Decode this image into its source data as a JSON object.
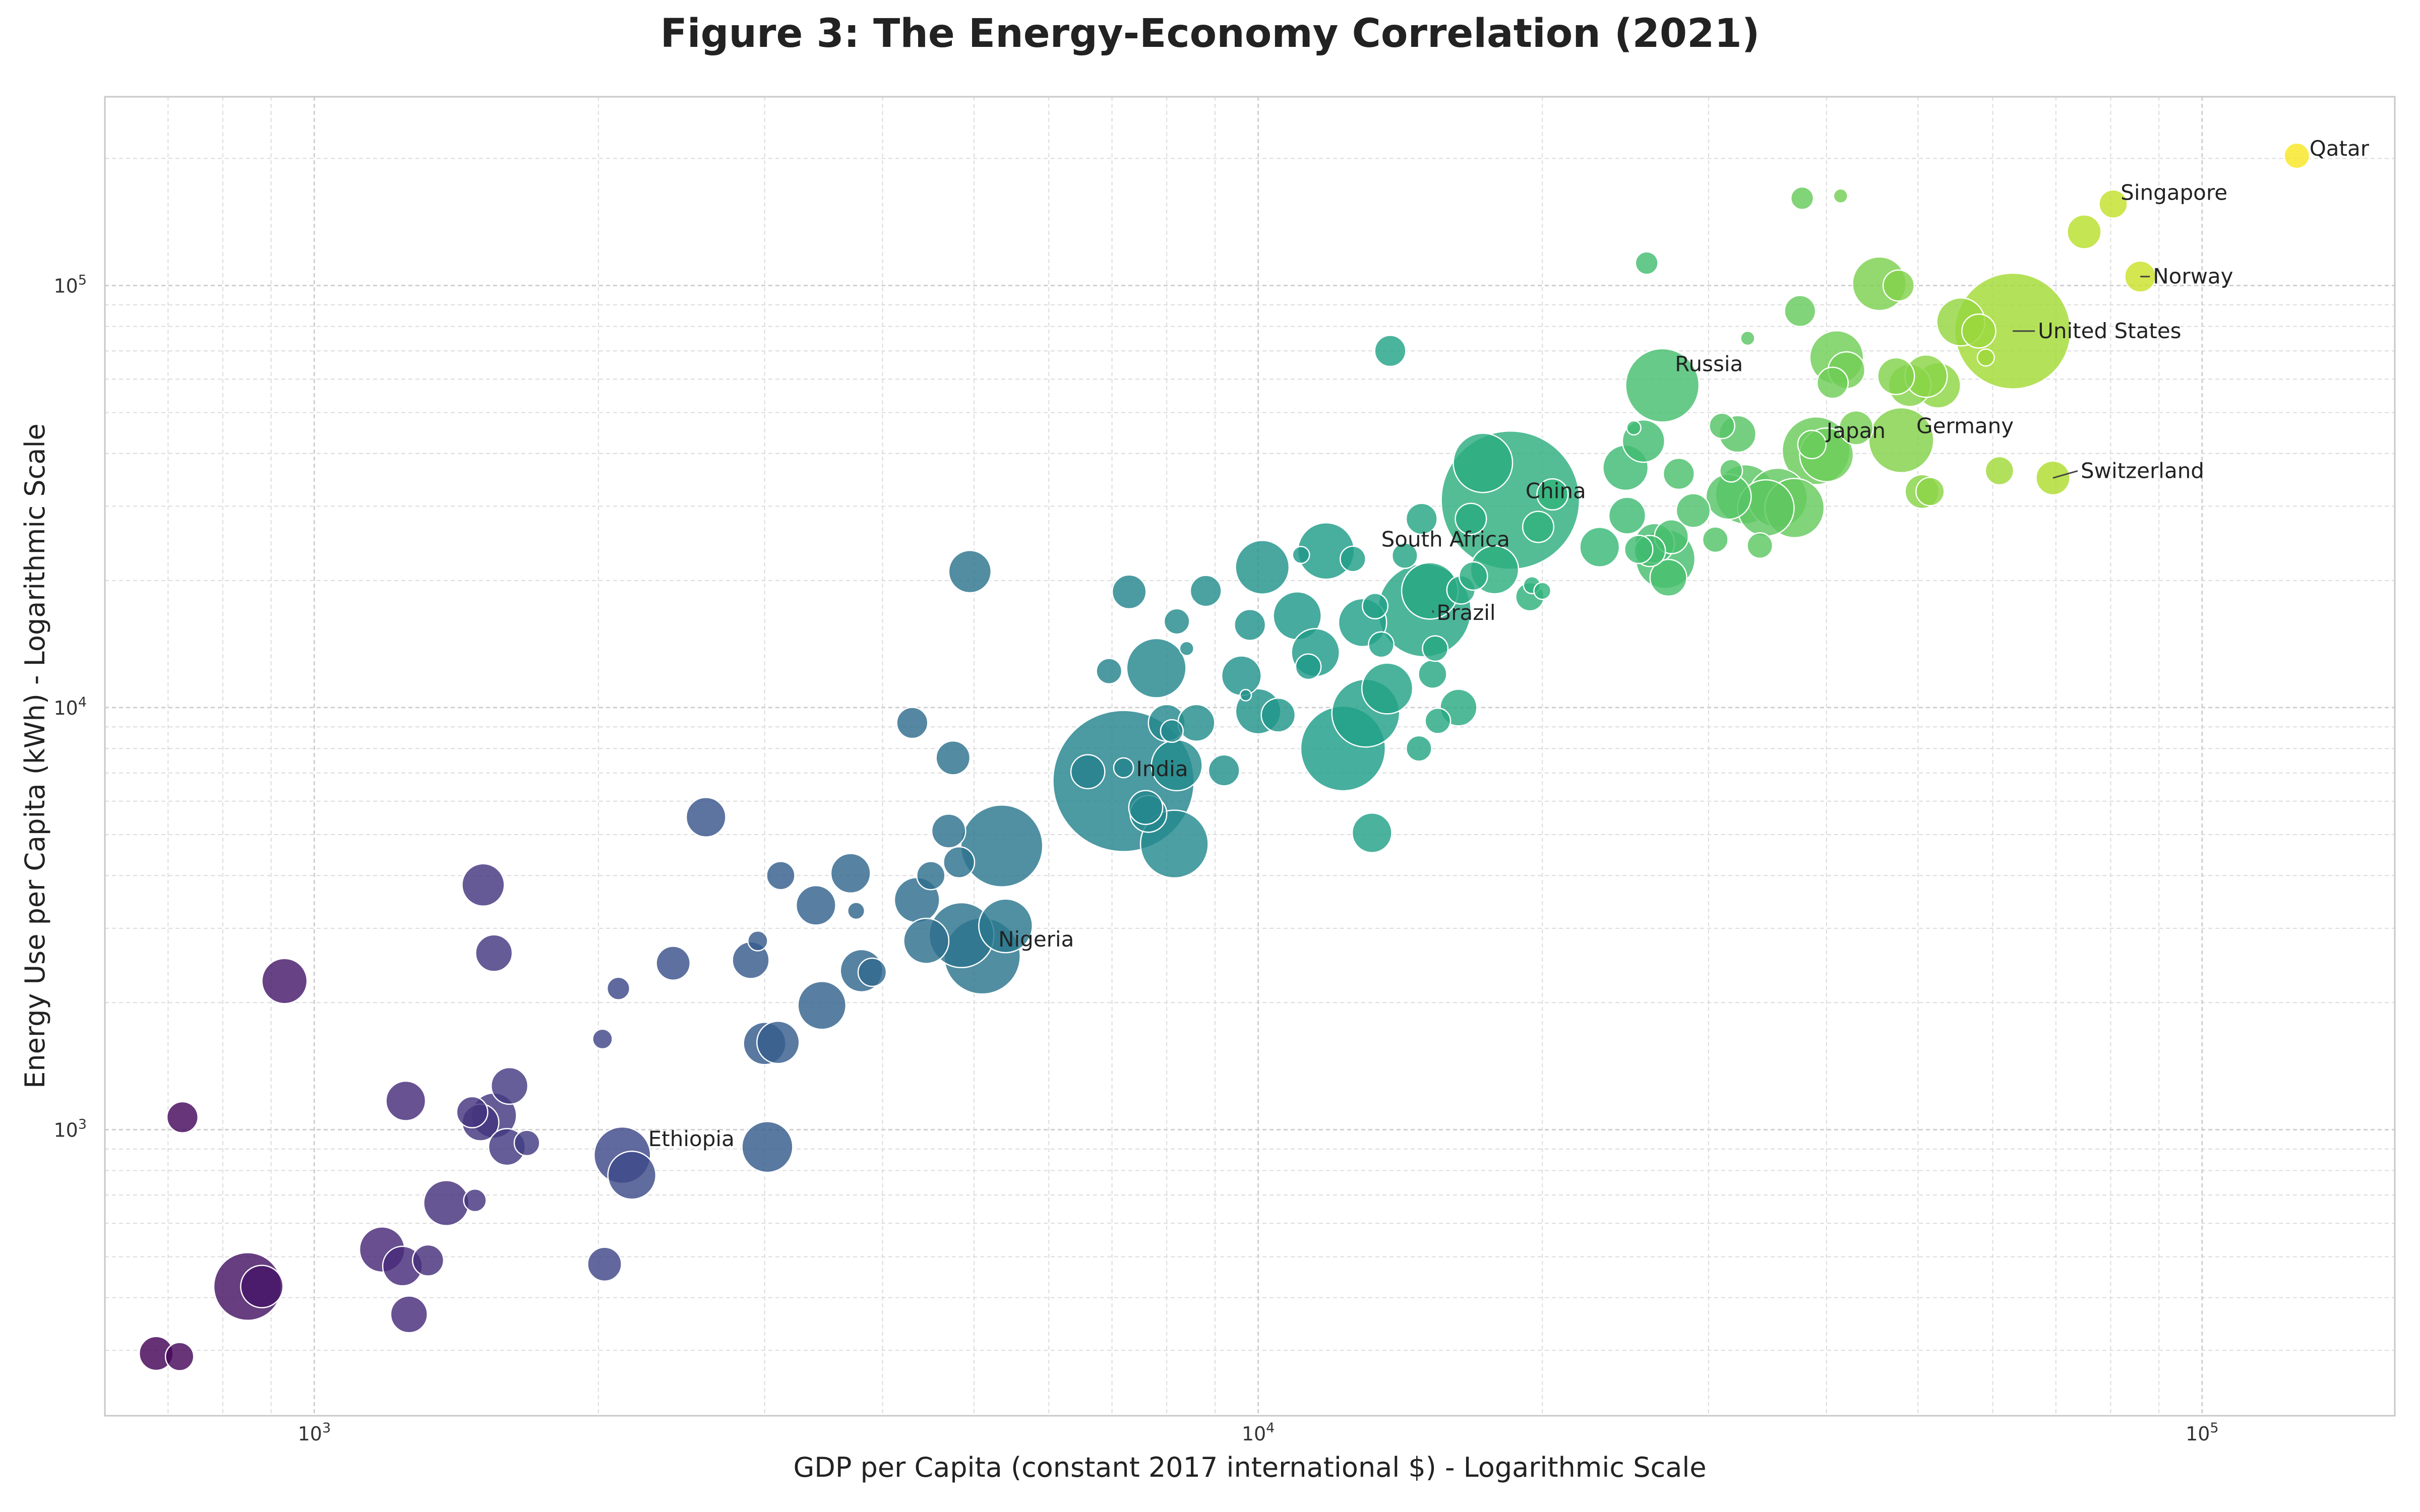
{
  "chart_data": {
    "type": "scatter",
    "title": "Figure 3: The Energy-Economy Correlation (2021)",
    "xlabel": "GDP per Capita (constant 2017 international $) - Logarithmic Scale",
    "ylabel": "Energy Use per Capita (kWh) - Logarithmic Scale",
    "xscale": "log",
    "yscale": "log",
    "xlim": [
      600,
      160000
    ],
    "ylim": [
      210,
      280000
    ],
    "grid": true,
    "grid_minor": true,
    "colormap": "viridis",
    "color_encoding": "log GDP per capita",
    "size_encoding": "population",
    "x_ticks": [
      {
        "value": 1000,
        "label": "10",
        "exp": "3"
      },
      {
        "value": 10000,
        "label": "10",
        "exp": "4"
      },
      {
        "value": 100000,
        "label": "10",
        "exp": "5"
      }
    ],
    "y_ticks": [
      {
        "value": 1000,
        "label": "10",
        "exp": "3"
      },
      {
        "value": 10000,
        "label": "10",
        "exp": "4"
      },
      {
        "value": 100000,
        "label": "10",
        "exp": "5"
      }
    ],
    "annotations": [
      {
        "text": "Qatar",
        "x": 126000,
        "y": 203000,
        "dx": 25,
        "dy": -14,
        "leader": false
      },
      {
        "text": "Singapore",
        "x": 79000,
        "y": 156000,
        "dx": 30,
        "dy": -22,
        "leader": false
      },
      {
        "text": "Norway",
        "x": 86000,
        "y": 105000,
        "dx": 25,
        "dy": 0,
        "leader": true
      },
      {
        "text": "United States",
        "x": 63000,
        "y": 78000,
        "dx": 50,
        "dy": 0,
        "leader": true
      },
      {
        "text": "Russia",
        "x": 26800,
        "y": 58000,
        "dx": 25,
        "dy": -42,
        "leader": false
      },
      {
        "text": "Germany",
        "x": 48000,
        "y": 43000,
        "dx": 30,
        "dy": -28,
        "leader": false
      },
      {
        "text": "Japan",
        "x": 40000,
        "y": 41000,
        "dx": 0,
        "dy": -36,
        "leader": false
      },
      {
        "text": "Switzerland",
        "x": 69500,
        "y": 35000,
        "dx": 55,
        "dy": -14,
        "leader": true
      },
      {
        "text": "China",
        "x": 18500,
        "y": 31000,
        "dx": 30,
        "dy": -18,
        "leader": false
      },
      {
        "text": "South Africa",
        "x": 13500,
        "y": 25000,
        "dx": 0,
        "dy": 0,
        "leader": false
      },
      {
        "text": "Brazil",
        "x": 15300,
        "y": 17000,
        "dx": 8,
        "dy": 5,
        "leader": true
      },
      {
        "text": "India",
        "x": 7200,
        "y": 6800,
        "dx": 25,
        "dy": -18,
        "leader": false
      },
      {
        "text": "Nigeria",
        "x": 5050,
        "y": 2600,
        "dx": 40,
        "dy": -30,
        "leader": false
      },
      {
        "text": "Ethiopia",
        "x": 2150,
        "y": 880,
        "dx": 40,
        "dy": -28,
        "leader": false
      }
    ],
    "points": [
      {
        "x": 680,
        "y": 295,
        "s": 1.2
      },
      {
        "x": 720,
        "y": 290,
        "s": 1.0
      },
      {
        "x": 725,
        "y": 1070,
        "s": 1.1
      },
      {
        "x": 850,
        "y": 425,
        "s": 2.4
      },
      {
        "x": 880,
        "y": 425,
        "s": 1.5
      },
      {
        "x": 930,
        "y": 2250,
        "s": 1.6
      },
      {
        "x": 1180,
        "y": 520,
        "s": 1.6
      },
      {
        "x": 1240,
        "y": 475,
        "s": 1.4
      },
      {
        "x": 1250,
        "y": 1170,
        "s": 1.4
      },
      {
        "x": 1260,
        "y": 365,
        "s": 1.3
      },
      {
        "x": 1320,
        "y": 490,
        "s": 1.1
      },
      {
        "x": 1380,
        "y": 670,
        "s": 1.6
      },
      {
        "x": 1470,
        "y": 1100,
        "s": 1.1
      },
      {
        "x": 1480,
        "y": 680,
        "s": 0.8
      },
      {
        "x": 1500,
        "y": 1040,
        "s": 1.3
      },
      {
        "x": 1510,
        "y": 3800,
        "s": 1.5
      },
      {
        "x": 1550,
        "y": 2620,
        "s": 1.3
      },
      {
        "x": 1550,
        "y": 1080,
        "s": 1.6
      },
      {
        "x": 1600,
        "y": 910,
        "s": 1.3
      },
      {
        "x": 1610,
        "y": 1270,
        "s": 1.3
      },
      {
        "x": 1680,
        "y": 930,
        "s": 0.9
      },
      {
        "x": 2020,
        "y": 1640,
        "s": 0.7
      },
      {
        "x": 2030,
        "y": 480,
        "s": 1.2
      },
      {
        "x": 2100,
        "y": 2160,
        "s": 0.8
      },
      {
        "x": 2120,
        "y": 870,
        "s": 2.0
      },
      {
        "x": 2170,
        "y": 780,
        "s": 1.7
      },
      {
        "x": 2400,
        "y": 2480,
        "s": 1.2
      },
      {
        "x": 2600,
        "y": 5500,
        "s": 1.4
      },
      {
        "x": 2900,
        "y": 2520,
        "s": 1.3
      },
      {
        "x": 2950,
        "y": 2800,
        "s": 0.7
      },
      {
        "x": 3000,
        "y": 1600,
        "s": 1.5
      },
      {
        "x": 3020,
        "y": 910,
        "s": 1.8
      },
      {
        "x": 3100,
        "y": 1610,
        "s": 1.5
      },
      {
        "x": 3120,
        "y": 4000,
        "s": 1.0
      },
      {
        "x": 3400,
        "y": 3400,
        "s": 1.4
      },
      {
        "x": 3450,
        "y": 1970,
        "s": 1.7
      },
      {
        "x": 3700,
        "y": 4050,
        "s": 1.4
      },
      {
        "x": 3750,
        "y": 3300,
        "s": 0.6
      },
      {
        "x": 3800,
        "y": 2380,
        "s": 1.5
      },
      {
        "x": 3900,
        "y": 2360,
        "s": 1.0
      },
      {
        "x": 4300,
        "y": 9200,
        "s": 1.1
      },
      {
        "x": 4350,
        "y": 3500,
        "s": 1.6
      },
      {
        "x": 4450,
        "y": 2800,
        "s": 1.6
      },
      {
        "x": 4500,
        "y": 4000,
        "s": 1.0
      },
      {
        "x": 4700,
        "y": 5100,
        "s": 1.2
      },
      {
        "x": 4750,
        "y": 7600,
        "s": 1.2
      },
      {
        "x": 4820,
        "y": 4300,
        "s": 1.1
      },
      {
        "x": 4850,
        "y": 2890,
        "s": 2.3
      },
      {
        "x": 4950,
        "y": 21000,
        "s": 1.5
      },
      {
        "x": 5100,
        "y": 2580,
        "s": 2.7
      },
      {
        "x": 5350,
        "y": 4700,
        "s": 2.9
      },
      {
        "x": 5400,
        "y": 3040,
        "s": 1.9
      },
      {
        "x": 6600,
        "y": 7050,
        "s": 1.2
      },
      {
        "x": 6950,
        "y": 12200,
        "s": 0.9
      },
      {
        "x": 7200,
        "y": 6700,
        "s": 5.0
      },
      {
        "x": 7200,
        "y": 7200,
        "s": 0.7
      },
      {
        "x": 7300,
        "y": 18800,
        "s": 1.2
      },
      {
        "x": 7600,
        "y": 5800,
        "s": 1.2
      },
      {
        "x": 7650,
        "y": 5600,
        "s": 1.3
      },
      {
        "x": 7800,
        "y": 12400,
        "s": 2.1
      },
      {
        "x": 8000,
        "y": 9200,
        "s": 1.3
      },
      {
        "x": 8100,
        "y": 8800,
        "s": 0.8
      },
      {
        "x": 8150,
        "y": 4750,
        "s": 2.4
      },
      {
        "x": 8200,
        "y": 7300,
        "s": 1.8
      },
      {
        "x": 8200,
        "y": 16000,
        "s": 0.9
      },
      {
        "x": 8400,
        "y": 13800,
        "s": 0.5
      },
      {
        "x": 8600,
        "y": 9200,
        "s": 1.3
      },
      {
        "x": 8800,
        "y": 18900,
        "s": 1.1
      },
      {
        "x": 9200,
        "y": 7100,
        "s": 1.1
      },
      {
        "x": 9600,
        "y": 11900,
        "s": 1.4
      },
      {
        "x": 9700,
        "y": 10700,
        "s": 0.4
      },
      {
        "x": 9800,
        "y": 15700,
        "s": 1.1
      },
      {
        "x": 10000,
        "y": 9800,
        "s": 1.6
      },
      {
        "x": 10100,
        "y": 21500,
        "s": 1.9
      },
      {
        "x": 10500,
        "y": 9600,
        "s": 1.2
      },
      {
        "x": 11000,
        "y": 16500,
        "s": 1.7
      },
      {
        "x": 11100,
        "y": 23000,
        "s": 0.6
      },
      {
        "x": 11300,
        "y": 12500,
        "s": 0.9
      },
      {
        "x": 11500,
        "y": 13500,
        "s": 1.7
      },
      {
        "x": 11800,
        "y": 23500,
        "s": 2.0
      },
      {
        "x": 12300,
        "y": 8000,
        "s": 3.0
      },
      {
        "x": 12600,
        "y": 22500,
        "s": 0.9
      },
      {
        "x": 12900,
        "y": 15900,
        "s": 1.7
      },
      {
        "x": 13000,
        "y": 9700,
        "s": 2.4
      },
      {
        "x": 13200,
        "y": 5050,
        "s": 1.4
      },
      {
        "x": 13300,
        "y": 17400,
        "s": 0.9
      },
      {
        "x": 13500,
        "y": 14100,
        "s": 0.9
      },
      {
        "x": 13700,
        "y": 11100,
        "s": 1.8
      },
      {
        "x": 13800,
        "y": 70000,
        "s": 1.1
      },
      {
        "x": 14300,
        "y": 22900,
        "s": 0.9
      },
      {
        "x": 14800,
        "y": 8000,
        "s": 0.9
      },
      {
        "x": 14900,
        "y": 28000,
        "s": 1.1
      },
      {
        "x": 15000,
        "y": 17000,
        "s": 3.3
      },
      {
        "x": 15200,
        "y": 18900,
        "s": 2.0
      },
      {
        "x": 15300,
        "y": 12000,
        "s": 1.0
      },
      {
        "x": 15400,
        "y": 13800,
        "s": 0.9
      },
      {
        "x": 15500,
        "y": 9300,
        "s": 0.9
      },
      {
        "x": 16300,
        "y": 10000,
        "s": 1.3
      },
      {
        "x": 16400,
        "y": 19000,
        "s": 1.0
      },
      {
        "x": 16800,
        "y": 28000,
        "s": 1.1
      },
      {
        "x": 16900,
        "y": 20500,
        "s": 1.0
      },
      {
        "x": 17300,
        "y": 38000,
        "s": 2.1
      },
      {
        "x": 17800,
        "y": 21200,
        "s": 1.7
      },
      {
        "x": 18500,
        "y": 31000,
        "s": 4.9
      },
      {
        "x": 19400,
        "y": 18300,
        "s": 1.0
      },
      {
        "x": 19500,
        "y": 19500,
        "s": 0.6
      },
      {
        "x": 19800,
        "y": 26800,
        "s": 1.1
      },
      {
        "x": 20000,
        "y": 18900,
        "s": 0.6
      },
      {
        "x": 20500,
        "y": 32000,
        "s": 1.1
      },
      {
        "x": 23000,
        "y": 24000,
        "s": 1.4
      },
      {
        "x": 24500,
        "y": 37000,
        "s": 1.6
      },
      {
        "x": 24600,
        "y": 28500,
        "s": 1.3
      },
      {
        "x": 25000,
        "y": 46000,
        "s": 0.5
      },
      {
        "x": 25300,
        "y": 23700,
        "s": 1.0
      },
      {
        "x": 25600,
        "y": 42800,
        "s": 1.5
      },
      {
        "x": 25800,
        "y": 113000,
        "s": 0.8
      },
      {
        "x": 26000,
        "y": 23500,
        "s": 1.1
      },
      {
        "x": 26300,
        "y": 24500,
        "s": 1.4
      },
      {
        "x": 26800,
        "y": 58000,
        "s": 2.6
      },
      {
        "x": 27000,
        "y": 22500,
        "s": 2.1
      },
      {
        "x": 27200,
        "y": 20300,
        "s": 1.3
      },
      {
        "x": 27400,
        "y": 25400,
        "s": 1.2
      },
      {
        "x": 27900,
        "y": 35800,
        "s": 1.1
      },
      {
        "x": 28900,
        "y": 29300,
        "s": 1.2
      },
      {
        "x": 30500,
        "y": 25000,
        "s": 0.9
      },
      {
        "x": 31000,
        "y": 46500,
        "s": 0.9
      },
      {
        "x": 31500,
        "y": 31600,
        "s": 1.6
      },
      {
        "x": 31700,
        "y": 36400,
        "s": 0.8
      },
      {
        "x": 32200,
        "y": 44500,
        "s": 1.3
      },
      {
        "x": 32800,
        "y": 32000,
        "s": 2.1
      },
      {
        "x": 33000,
        "y": 75000,
        "s": 0.5
      },
      {
        "x": 34000,
        "y": 24200,
        "s": 0.9
      },
      {
        "x": 34500,
        "y": 29700,
        "s": 2.0
      },
      {
        "x": 35500,
        "y": 31400,
        "s": 2.1
      },
      {
        "x": 37000,
        "y": 29700,
        "s": 2.1
      },
      {
        "x": 37500,
        "y": 87000,
        "s": 1.1
      },
      {
        "x": 37700,
        "y": 161000,
        "s": 0.8
      },
      {
        "x": 38600,
        "y": 42000,
        "s": 1.0
      },
      {
        "x": 39000,
        "y": 40600,
        "s": 2.4
      },
      {
        "x": 40000,
        "y": 39700,
        "s": 1.9
      },
      {
        "x": 40600,
        "y": 58800,
        "s": 1.1
      },
      {
        "x": 41000,
        "y": 67500,
        "s": 1.9
      },
      {
        "x": 41400,
        "y": 163000,
        "s": 0.5
      },
      {
        "x": 42000,
        "y": 63000,
        "s": 1.3
      },
      {
        "x": 43000,
        "y": 46000,
        "s": 1.2
      },
      {
        "x": 45500,
        "y": 101000,
        "s": 1.9
      },
      {
        "x": 47400,
        "y": 61000,
        "s": 1.3
      },
      {
        "x": 47700,
        "y": 100000,
        "s": 1.1
      },
      {
        "x": 48000,
        "y": 43000,
        "s": 2.3
      },
      {
        "x": 49000,
        "y": 58000,
        "s": 1.5
      },
      {
        "x": 50500,
        "y": 32500,
        "s": 1.2
      },
      {
        "x": 51000,
        "y": 61000,
        "s": 1.5
      },
      {
        "x": 51500,
        "y": 32500,
        "s": 1.0
      },
      {
        "x": 52500,
        "y": 58000,
        "s": 1.6
      },
      {
        "x": 55500,
        "y": 82000,
        "s": 1.7
      },
      {
        "x": 58000,
        "y": 78000,
        "s": 1.2
      },
      {
        "x": 59000,
        "y": 67500,
        "s": 0.6
      },
      {
        "x": 61000,
        "y": 36400,
        "s": 1.0
      },
      {
        "x": 63000,
        "y": 78000,
        "s": 4.1
      },
      {
        "x": 69500,
        "y": 35000,
        "s": 1.2
      },
      {
        "x": 75000,
        "y": 134000,
        "s": 1.2
      },
      {
        "x": 80500,
        "y": 156000,
        "s": 1.0
      },
      {
        "x": 86000,
        "y": 105000,
        "s": 1.1
      },
      {
        "x": 126000,
        "y": 203000,
        "s": 0.9
      }
    ]
  }
}
